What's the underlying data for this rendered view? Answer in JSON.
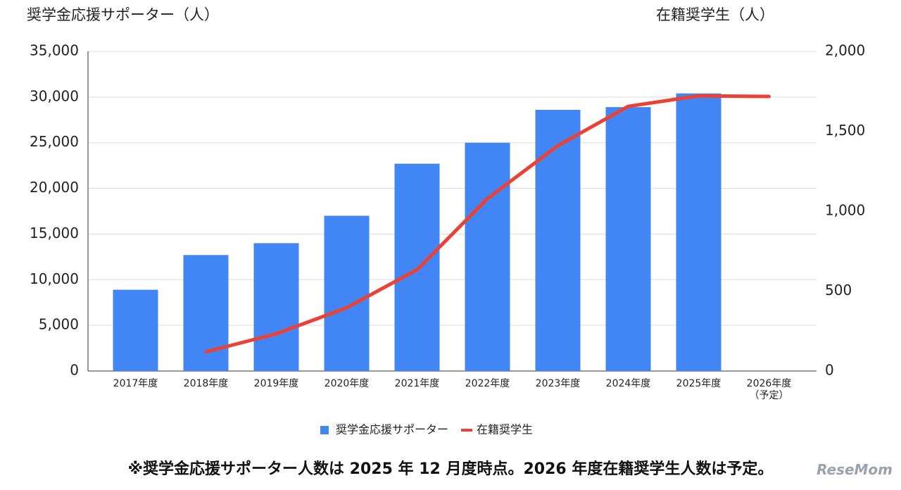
{
  "chart_data": {
    "type": "bar",
    "y_title": "奨学金応援サポーター（人）",
    "y2_title": "在籍奨学生（人）",
    "categories": [
      "2017年度",
      "2018年度",
      "2019年度",
      "2020年度",
      "2021年度",
      "2022年度",
      "2023年度",
      "2024年度",
      "2025年度",
      "2026年度\n（予定）"
    ],
    "series": [
      {
        "name": "奨学金応援サポーター",
        "type": "bar",
        "color": "#4285f4",
        "values": [
          8900,
          12700,
          14000,
          17000,
          22700,
          25000,
          28600,
          28900,
          30400,
          null
        ]
      },
      {
        "name": "在籍奨学生",
        "type": "line",
        "axis": "y2",
        "color": "#ea4335",
        "values": [
          null,
          120,
          233,
          396,
          634,
          1079,
          1410,
          1656,
          1722,
          1718
        ]
      }
    ],
    "ylim": [
      0,
      35000
    ],
    "yticks": [
      0,
      {
        "value": 5000,
        "label": "5,000"
      },
      {
        "value": 10000,
        "label": "10,000"
      },
      {
        "value": 15000,
        "label": "15,000"
      },
      {
        "value": 20000,
        "label": "20,000"
      },
      {
        "value": 25000,
        "label": "25,000"
      },
      {
        "value": 30000,
        "label": "30,000"
      },
      {
        "value": 35000,
        "label": "35,000"
      }
    ],
    "y2lim": [
      0,
      2000
    ],
    "y2ticks": [
      0,
      500,
      {
        "value": 1000,
        "label": "1,000"
      },
      {
        "value": 1500,
        "label": "1,500"
      },
      {
        "value": 2000,
        "label": "2,000"
      }
    ],
    "grid": true,
    "legend": "bottom",
    "footnote": "※奨学金応援サポーター人数は 2025 年 12 月度時点。2026 年度在籍奨学生人数は予定。",
    "watermark": "ReseMom"
  }
}
